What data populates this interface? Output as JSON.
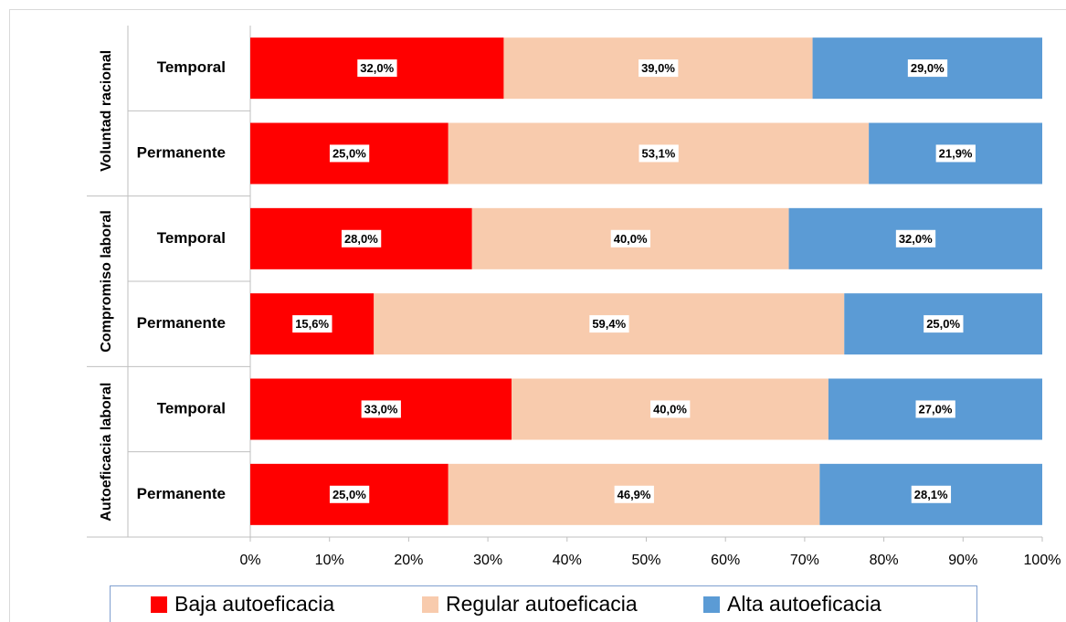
{
  "chart_data": {
    "type": "bar",
    "orientation": "horizontal",
    "stacked": true,
    "groups": [
      "Voluntad racional",
      "Compromiso laboral",
      "Autoeficacia laboral"
    ],
    "categories": [
      "Temporal",
      "Permanente",
      "Temporal",
      "Permanente",
      "Temporal",
      "Permanente"
    ],
    "series": [
      {
        "name": "Baja autoeficacia",
        "color": "#ff0000",
        "values": [
          32.0,
          25.0,
          28.0,
          15.6,
          33.0,
          25.0
        ],
        "value_labels": [
          "32,0%",
          "25,0%",
          "28,0%",
          "15,6%",
          "33,0%",
          "25,0%"
        ]
      },
      {
        "name": "Regular autoeficacia",
        "color": "#f8cbad",
        "values": [
          39.0,
          53.1,
          40.0,
          59.4,
          40.0,
          46.9
        ],
        "value_labels": [
          "39,0%",
          "53,1%",
          "40,0%",
          "59,4%",
          "40,0%",
          "46,9%"
        ]
      },
      {
        "name": "Alta autoeficacia",
        "color": "#5b9bd5",
        "values": [
          29.0,
          21.9,
          32.0,
          25.0,
          27.0,
          28.1
        ],
        "value_labels": [
          "29,0%",
          "21,9%",
          "32,0%",
          "25,0%",
          "27,0%",
          "28,1%"
        ]
      }
    ],
    "xlim": [
      0,
      100
    ],
    "xticks": [
      {
        "value": 0,
        "label": "0%"
      },
      {
        "value": 10,
        "label": "10%"
      },
      {
        "value": 20,
        "label": "20%"
      },
      {
        "value": 30,
        "label": "30%"
      },
      {
        "value": 40,
        "label": "40%"
      },
      {
        "value": 50,
        "label": "50%"
      },
      {
        "value": 60,
        "label": "60%"
      },
      {
        "value": 70,
        "label": "70%"
      },
      {
        "value": 80,
        "label": "80%"
      },
      {
        "value": 90,
        "label": "90%"
      },
      {
        "value": 100,
        "label": "100%"
      }
    ],
    "grid": false,
    "legend": "bottom"
  }
}
